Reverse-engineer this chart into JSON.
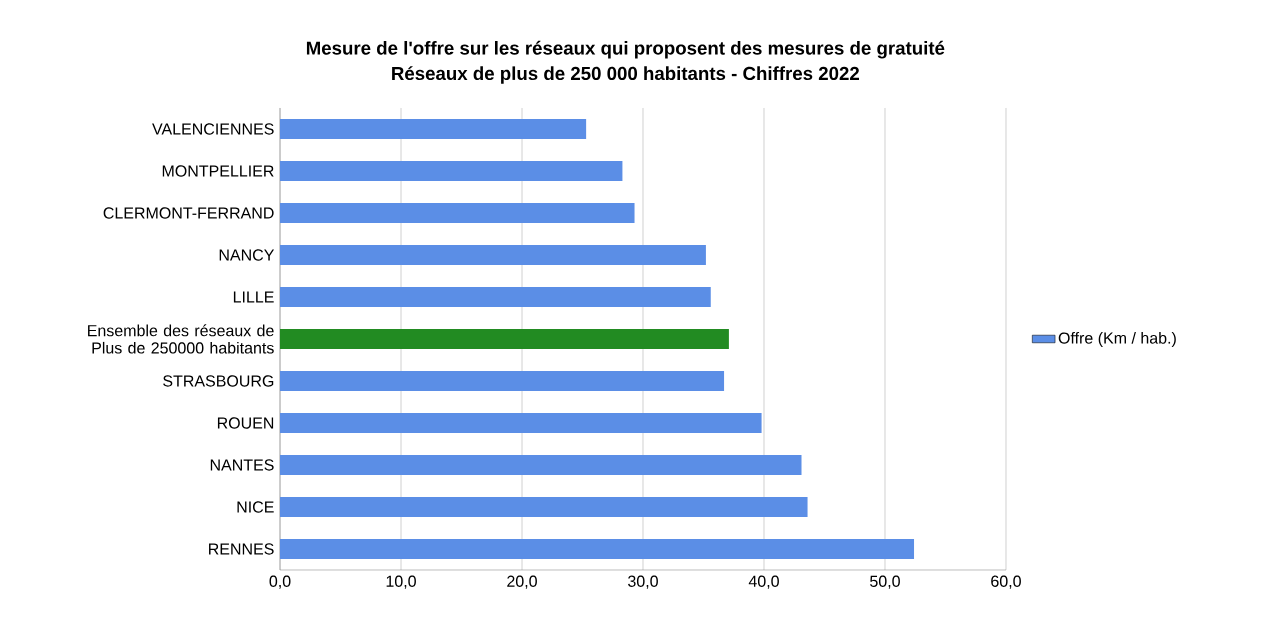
{
  "chart_data": {
    "type": "bar",
    "orientation": "horizontal",
    "title": "Mesure de l'offre sur les réseaux qui proposent des mesures de gratuité",
    "subtitle": "Réseaux de plus de 250 000 habitants - Chiffres 2022",
    "categories": [
      "VALENCIENNES",
      "MONTPELLIER",
      "CLERMONT-FERRAND",
      "NANCY",
      "LILLE",
      "Ensemble des réseaux de Plus de 250000 habitants",
      "STRASBOURG",
      "ROUEN",
      "NANTES",
      "NICE",
      "RENNES"
    ],
    "series": [
      {
        "name": "Offre (Km / hab.)",
        "color": "#5b8ee6",
        "colors": [
          "#5b8ee6",
          "#5b8ee6",
          "#5b8ee6",
          "#5b8ee6",
          "#5b8ee6",
          "#228b22",
          "#5b8ee6",
          "#5b8ee6",
          "#5b8ee6",
          "#5b8ee6",
          "#5b8ee6"
        ],
        "values": [
          25.3,
          28.3,
          29.3,
          35.2,
          35.6,
          37.1,
          36.7,
          39.8,
          43.1,
          43.6,
          52.4
        ]
      }
    ],
    "xlim": [
      0,
      60
    ],
    "xticks": [
      {
        "value": 0,
        "label": "0,0"
      },
      {
        "value": 10,
        "label": "10,0"
      },
      {
        "value": 20,
        "label": "20,0"
      },
      {
        "value": 30,
        "label": "30,0"
      },
      {
        "value": 40,
        "label": "40,0"
      },
      {
        "value": 50,
        "label": "50,0"
      },
      {
        "value": 60,
        "label": "60,0"
      }
    ],
    "grid": "x",
    "legend": "right"
  }
}
